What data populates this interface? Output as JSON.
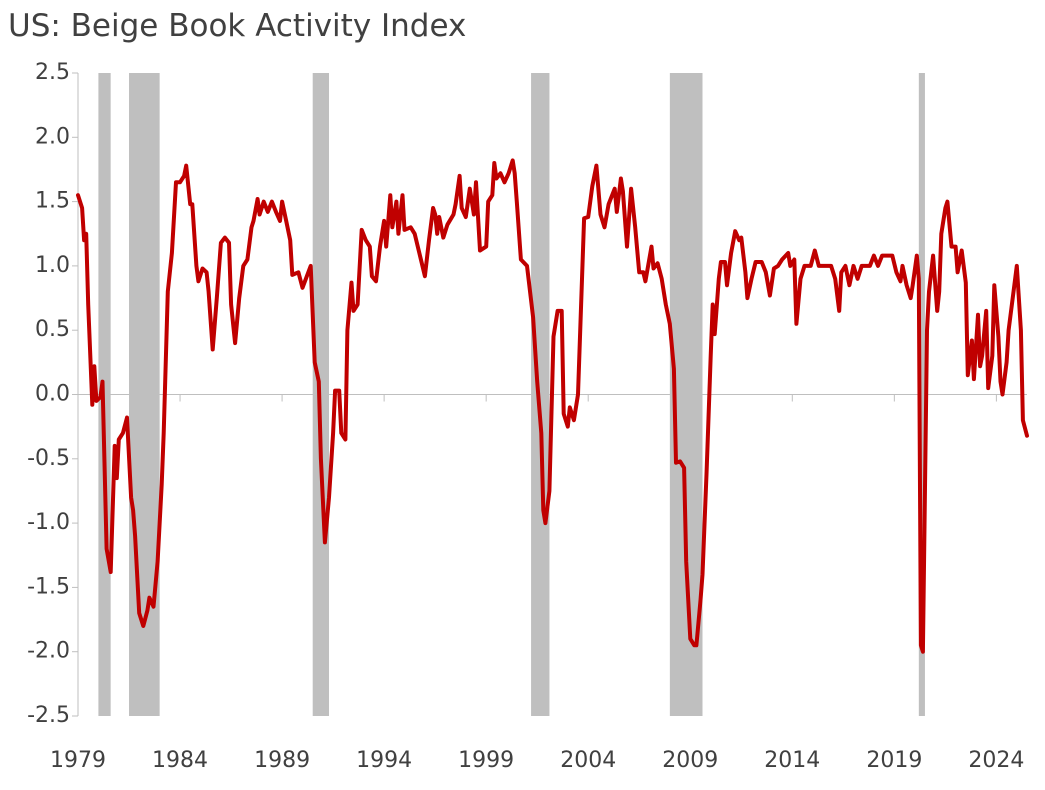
{
  "chart_data": {
    "type": "line",
    "title": "US: Beige Book Activity Index",
    "xlim": [
      1979,
      2025.5
    ],
    "xticks": [
      1979,
      1984,
      1989,
      1994,
      1999,
      2004,
      2009,
      2014,
      2019,
      2024
    ],
    "ylim": [
      -2.5,
      2.5
    ],
    "yticks": [
      2.5,
      {
        "value": 2,
        "label": "2.0"
      },
      1.5,
      {
        "value": 1,
        "label": "1.0"
      },
      0.5,
      {
        "value": 0,
        "label": "0.0"
      },
      -0.5,
      {
        "value": -1,
        "label": "-1.0"
      },
      -1.5,
      {
        "value": -2,
        "label": "-2.0"
      },
      -2.5
    ],
    "shaded_color": "#bfbfbf",
    "shaded_periods": [
      {
        "start": 1980.0,
        "end": 1980.6
      },
      {
        "start": 1981.5,
        "end": 1983.0
      },
      {
        "start": 1990.5,
        "end": 1991.3
      },
      {
        "start": 2001.2,
        "end": 2002.1
      },
      {
        "start": 2008.0,
        "end": 2009.6
      },
      {
        "start": 2020.2,
        "end": 2020.5
      }
    ],
    "series": [
      {
        "color": "#c00000",
        "x": [
          1979.0,
          1979.2,
          1979.3,
          1979.4,
          1979.5,
          1979.7,
          1979.8,
          1979.9,
          1980.1,
          1980.2,
          1980.4,
          1980.6,
          1980.8,
          1980.9,
          1981.0,
          1981.2,
          1981.4,
          1981.6,
          1981.7,
          1981.8,
          1982.0,
          1982.2,
          1982.4,
          1982.5,
          1982.7,
          1982.9,
          1983.1,
          1983.2,
          1983.4,
          1983.6,
          1983.8,
          1984.0,
          1984.2,
          1984.3,
          1984.5,
          1984.6,
          1984.8,
          1984.9,
          1985.1,
          1985.3,
          1985.4,
          1985.6,
          1985.8,
          1986.0,
          1986.2,
          1986.4,
          1986.5,
          1986.7,
          1986.9,
          1987.1,
          1987.3,
          1987.5,
          1987.6,
          1987.8,
          1987.9,
          1988.1,
          1988.3,
          1988.5,
          1988.7,
          1988.9,
          1989.0,
          1989.2,
          1989.4,
          1989.5,
          1989.8,
          1990.0,
          1990.4,
          1990.6,
          1990.8,
          1990.9,
          1991.1,
          1991.3,
          1991.5,
          1991.6,
          1991.8,
          1991.9,
          1992.1,
          1992.2,
          1992.4,
          1992.5,
          1992.7,
          1992.9,
          1993.1,
          1993.3,
          1993.4,
          1993.6,
          1993.8,
          1994.0,
          1994.1,
          1994.3,
          1994.4,
          1994.6,
          1994.7,
          1994.9,
          1995.0,
          1995.3,
          1995.5,
          1995.8,
          1996.0,
          1996.2,
          1996.4,
          1996.5,
          1996.6,
          1996.7,
          1996.9,
          1997.1,
          1997.4,
          1997.5,
          1997.7,
          1997.8,
          1998.0,
          1998.2,
          1998.4,
          1998.5,
          1998.7,
          1999.0,
          1999.1,
          1999.3,
          1999.4,
          1999.5,
          1999.7,
          1999.9,
          2000.1,
          2000.3,
          2000.4,
          2000.5,
          2000.7,
          2001.0,
          2001.3,
          2001.5,
          2001.7,
          2001.8,
          2001.9,
          2002.1,
          2002.3,
          2002.5,
          2002.7,
          2002.8,
          2003.0,
          2003.1,
          2003.3,
          2003.5,
          2003.8,
          2004.0,
          2004.2,
          2004.4,
          2004.6,
          2004.8,
          2005.0,
          2005.3,
          2005.4,
          2005.6,
          2005.7,
          2005.9,
          2006.1,
          2006.3,
          2006.5,
          2006.7,
          2006.8,
          2007.1,
          2007.2,
          2007.4,
          2007.6,
          2007.8,
          2008.0,
          2008.2,
          2008.3,
          2008.5,
          2008.7,
          2008.8,
          2009.0,
          2009.2,
          2009.3,
          2009.5,
          2009.6,
          2009.8,
          2010.0,
          2010.1,
          2010.2,
          2010.4,
          2010.5,
          2010.7,
          2010.8,
          2011.0,
          2011.2,
          2011.4,
          2011.5,
          2011.7,
          2011.8,
          2012.0,
          2012.2,
          2012.5,
          2012.7,
          2012.9,
          2013.1,
          2013.3,
          2013.5,
          2013.8,
          2013.9,
          2014.1,
          2014.2,
          2014.4,
          2014.6,
          2014.9,
          2015.1,
          2015.3,
          2015.6,
          2015.9,
          2016.1,
          2016.3,
          2016.4,
          2016.6,
          2016.8,
          2017.0,
          2017.2,
          2017.4,
          2017.6,
          2017.8,
          2018.0,
          2018.2,
          2018.4,
          2018.7,
          2018.9,
          2019.1,
          2019.3,
          2019.4,
          2019.6,
          2019.8,
          2019.9,
          2020.1,
          2020.2,
          2020.3,
          2020.4,
          2020.6,
          2020.7,
          2020.9,
          2021.1,
          2021.2,
          2021.3,
          2021.5,
          2021.6,
          2021.8,
          2022.0,
          2022.1,
          2022.3,
          2022.5,
          2022.6,
          2022.8,
          2022.9,
          2023.1,
          2023.2,
          2023.3,
          2023.5,
          2023.6,
          2023.8,
          2023.9,
          2024.1,
          2024.2,
          2024.3,
          2024.5,
          2024.6,
          2024.8,
          2025.0,
          2025.2,
          2025.3,
          2025.5
        ],
        "values": [
          1.55,
          1.45,
          1.2,
          1.25,
          0.7,
          -0.08,
          0.22,
          -0.05,
          -0.02,
          0.1,
          -1.2,
          -1.38,
          -0.4,
          -0.65,
          -0.35,
          -0.3,
          -0.18,
          -0.8,
          -0.9,
          -1.1,
          -1.7,
          -1.8,
          -1.68,
          -1.58,
          -1.65,
          -1.3,
          -0.7,
          -0.3,
          0.8,
          1.1,
          1.65,
          1.65,
          1.7,
          1.78,
          1.48,
          1.48,
          1.0,
          0.88,
          0.98,
          0.95,
          0.8,
          0.35,
          0.75,
          1.18,
          1.22,
          1.18,
          0.7,
          0.4,
          0.75,
          1.0,
          1.05,
          1.3,
          1.35,
          1.52,
          1.4,
          1.5,
          1.42,
          1.5,
          1.42,
          1.35,
          1.5,
          1.35,
          1.2,
          0.93,
          0.95,
          0.83,
          1.0,
          0.25,
          0.1,
          -0.5,
          -1.15,
          -0.8,
          -0.3,
          0.03,
          0.03,
          -0.3,
          -0.35,
          0.5,
          0.87,
          0.65,
          0.7,
          1.28,
          1.2,
          1.15,
          0.92,
          0.88,
          1.15,
          1.35,
          1.15,
          1.55,
          1.3,
          1.5,
          1.25,
          1.55,
          1.28,
          1.3,
          1.25,
          1.05,
          0.92,
          1.2,
          1.45,
          1.4,
          1.25,
          1.38,
          1.22,
          1.32,
          1.4,
          1.48,
          1.7,
          1.45,
          1.38,
          1.6,
          1.4,
          1.65,
          1.12,
          1.15,
          1.5,
          1.55,
          1.8,
          1.68,
          1.72,
          1.65,
          1.72,
          1.82,
          1.72,
          1.5,
          1.05,
          1.0,
          0.6,
          0.1,
          -0.3,
          -0.9,
          -1.0,
          -0.75,
          0.45,
          0.65,
          0.65,
          -0.15,
          -0.25,
          -0.1,
          -0.2,
          0.0,
          1.37,
          1.38,
          1.62,
          1.78,
          1.4,
          1.3,
          1.48,
          1.6,
          1.42,
          1.68,
          1.58,
          1.15,
          1.6,
          1.3,
          0.95,
          0.95,
          0.88,
          1.15,
          0.98,
          1.02,
          0.9,
          0.7,
          0.55,
          0.2,
          -0.53,
          -0.52,
          -0.57,
          -1.3,
          -1.9,
          -1.95,
          -1.95,
          -1.6,
          -1.4,
          -0.6,
          0.3,
          0.7,
          0.47,
          0.9,
          1.03,
          1.03,
          0.85,
          1.1,
          1.27,
          1.2,
          1.22,
          0.95,
          0.75,
          0.9,
          1.03,
          1.03,
          0.95,
          0.77,
          0.98,
          1.0,
          1.05,
          1.1,
          1.0,
          1.05,
          0.55,
          0.9,
          1.0,
          1.0,
          1.12,
          1.0,
          1.0,
          1.0,
          0.9,
          0.65,
          0.95,
          1.0,
          0.85,
          1.0,
          0.9,
          1.0,
          1.0,
          1.0,
          1.08,
          1.0,
          1.08,
          1.08,
          1.08,
          0.95,
          0.88,
          1.0,
          0.85,
          0.75,
          0.85,
          1.08,
          0.9,
          -1.95,
          -2.0,
          0.5,
          0.8,
          1.08,
          0.65,
          0.8,
          1.25,
          1.45,
          1.5,
          1.15,
          1.15,
          0.95,
          1.12,
          0.87,
          0.15,
          0.42,
          0.12,
          0.62,
          0.22,
          0.3,
          0.65,
          0.05,
          0.3,
          0.85,
          0.45,
          0.1,
          0.0,
          0.25,
          0.5,
          0.75,
          1.0,
          0.5,
          -0.2,
          -0.32
        ]
      }
    ]
  }
}
